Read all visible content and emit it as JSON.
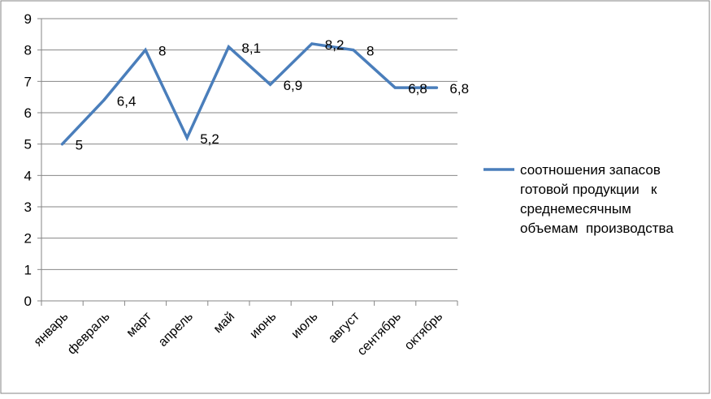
{
  "chart_data": {
    "type": "line",
    "categories": [
      "январь",
      "февраль",
      "март",
      "апрель",
      "май",
      "июнь",
      "июль",
      "август",
      "сентябрь",
      "октябрь"
    ],
    "series": [
      {
        "name": "соотношения запасов готовой продукции   к среднемесячным объемам  производства",
        "legend_lines": [
          "соотношения запасов",
          "готовой продукции   к",
          "среднемесячным",
          "объемам  производства"
        ],
        "values": [
          5,
          6.4,
          8,
          5.2,
          8.1,
          6.9,
          8.2,
          8,
          6.8,
          6.8
        ],
        "data_labels": [
          "5",
          "6,4",
          "8",
          "5,2",
          "8,1",
          "6,9",
          "8,2",
          "8",
          "6,8",
          "6,8"
        ],
        "color": "#4A7EBB"
      }
    ],
    "ylim": [
      0,
      9
    ],
    "y_ticks": [
      "0",
      "1",
      "2",
      "3",
      "4",
      "5",
      "6",
      "7",
      "8",
      "9"
    ],
    "grid": true,
    "legend_position": "right",
    "gridline_color": "#868686",
    "border_color": "#868686"
  }
}
